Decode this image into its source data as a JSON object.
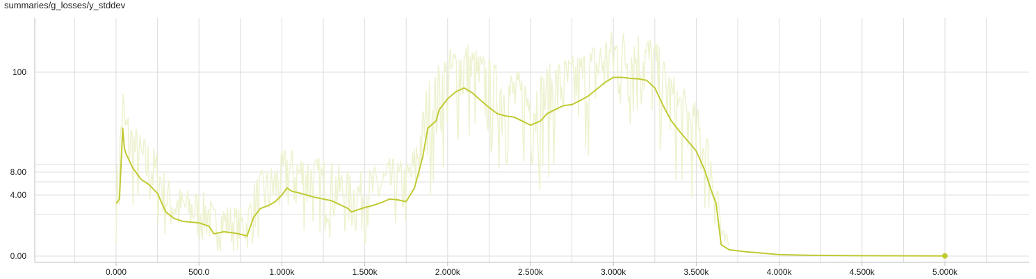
{
  "chart_data": {
    "type": "line",
    "title": "summaries/g_losses/y_stddev",
    "xlabel": "",
    "ylabel": "",
    "x_ticks": [
      "0.000",
      "500.0",
      "1.000k",
      "1.500k",
      "2.000k",
      "2.500k",
      "3.000k",
      "3.500k",
      "4.000k",
      "4.500k",
      "5.000k"
    ],
    "x_tick_values": [
      0,
      500,
      1000,
      1500,
      2000,
      2500,
      3000,
      3500,
      4000,
      4500,
      5000
    ],
    "y_ticks": [
      "0.00",
      "4.00",
      "8.00",
      "100"
    ],
    "y_tick_values": [
      0,
      4,
      8,
      100
    ],
    "y_scale": "log",
    "grid": true,
    "colors": {
      "line": "#c0ca33",
      "raw": "#eef2d0",
      "grid": "#dddddd"
    },
    "series": [
      {
        "kind": "smoothed",
        "x": [
          0,
          20,
          40,
          50,
          60,
          100,
          150,
          200,
          250,
          300,
          350,
          400,
          500,
          560,
          590,
          650,
          700,
          740,
          790,
          830,
          870,
          920,
          960,
          1000,
          1030,
          1060,
          1100,
          1150,
          1200,
          1300,
          1400,
          1420,
          1460,
          1500,
          1550,
          1600,
          1650,
          1700,
          1750,
          1800,
          1850,
          1880,
          1930,
          1950,
          2000,
          2050,
          2100,
          2150,
          2200,
          2250,
          2300,
          2350,
          2400,
          2450,
          2500,
          2560,
          2600,
          2650,
          2700,
          2750,
          2800,
          2850,
          2900,
          2950,
          3000,
          3050,
          3100,
          3150,
          3200,
          3250,
          3300,
          3350,
          3400,
          3450,
          3500,
          3550,
          3600,
          3620,
          3650,
          3700,
          3750,
          3800,
          3900,
          4000,
          4200,
          4500,
          4800,
          5000
        ],
        "y": [
          3.0,
          3.5,
          25,
          15,
          13,
          9,
          6.5,
          5.5,
          4.2,
          2.2,
          1.7,
          1.5,
          1.4,
          1.2,
          0.8,
          0.9,
          0.85,
          0.8,
          0.7,
          1.8,
          2.5,
          2.8,
          3.2,
          4.0,
          5.0,
          4.5,
          4.3,
          4.0,
          3.7,
          3.3,
          2.5,
          2.2,
          2.4,
          2.6,
          2.8,
          3.1,
          3.5,
          3.4,
          3.2,
          5.0,
          12,
          25,
          30,
          40,
          52,
          62,
          68,
          60,
          50,
          42,
          36,
          34,
          33,
          30,
          27,
          30,
          36,
          40,
          44,
          45,
          50,
          56,
          66,
          78,
          88,
          88,
          86,
          85,
          82,
          68,
          44,
          30,
          23,
          18,
          14,
          8.5,
          4.0,
          3.0,
          0.35,
          0.18,
          0.15,
          0.12,
          0.08,
          0.04,
          0.02,
          0.012,
          0.008,
          0.005
        ]
      }
    ]
  }
}
